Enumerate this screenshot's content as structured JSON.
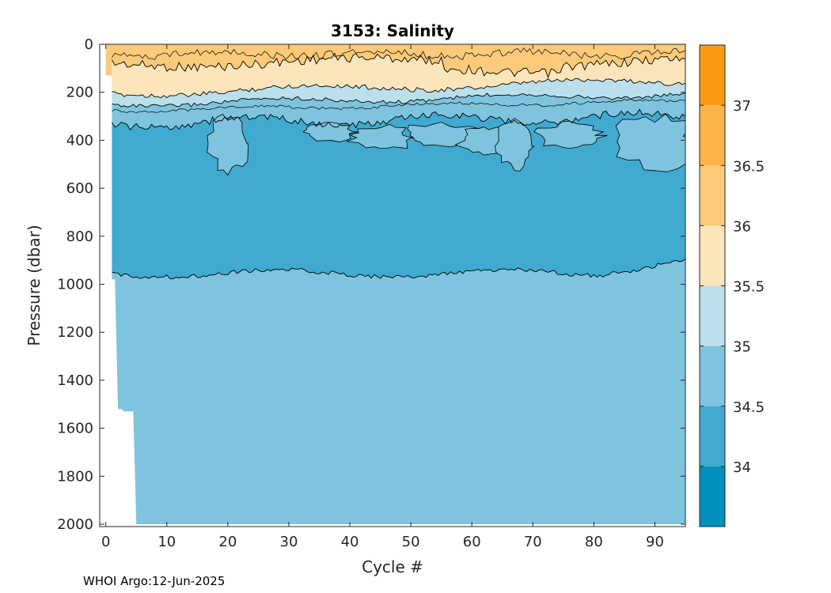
{
  "chart_data": {
    "type": "contour",
    "title": "3153:  Salinity",
    "xlabel": "Cycle #",
    "ylabel": "Pressure (dbar)",
    "xlim": [
      -1,
      95
    ],
    "ylim": [
      2010,
      0
    ],
    "xticks": [
      0,
      10,
      20,
      30,
      40,
      50,
      60,
      70,
      80,
      90
    ],
    "yticks": [
      0,
      200,
      400,
      600,
      800,
      1000,
      1200,
      1400,
      1600,
      1800,
      2000
    ],
    "y_reversed": true,
    "grid": false,
    "colorbar": {
      "location": "right",
      "levels": [
        33.5,
        34,
        34.5,
        35,
        35.5,
        36,
        36.5,
        37,
        37.5
      ],
      "tick_labels": [
        "34",
        "34.5",
        "35",
        "35.5",
        "36",
        "36.5",
        "37"
      ],
      "tick_values": [
        34,
        34.5,
        35,
        35.5,
        36,
        36.5,
        37
      ],
      "colors": [
        "#0090be",
        "#40aad0",
        "#7ec4de",
        "#bbe0ec",
        "#fde5bb",
        "#fbca7a",
        "#fbb448",
        "#fd9a14"
      ]
    },
    "bands": [
      {
        "range": "36-36.5",
        "top_dbar": 0,
        "bottom_dbar_approx": [
          70,
          60,
          80,
          100,
          130,
          100,
          80,
          60
        ]
      },
      {
        "range": "35.5-36",
        "top_dbar": 100,
        "bottom_dbar_approx": [
          230,
          210,
          200,
          180,
          160,
          170,
          190,
          200
        ]
      },
      {
        "range": "35-35.5",
        "top_dbar": 200,
        "bottom_dbar_approx": [
          280,
          270,
          240,
          220,
          210,
          230,
          240,
          260
        ]
      },
      {
        "range": "34.5-35",
        "top_dbar": 250,
        "bottom_dbar_approx": [
          340,
          320,
          300,
          280,
          300,
          320,
          330,
          310
        ]
      },
      {
        "range": "34-34.5",
        "top_dbar": 330,
        "bottom_dbar_approx": [
          960,
          940,
          950,
          970,
          960,
          920,
          900,
          880
        ]
      },
      {
        "range": "34.5-35",
        "top_dbar": 900,
        "bottom_dbar_approx": [
          2000
        ]
      }
    ],
    "data_coverage": {
      "first_cycle": 1,
      "max_depth_by_cycle": [
        {
          "cycle": 0,
          "max_dbar": 130
        },
        {
          "cycle": 1,
          "max_dbar": 980
        },
        {
          "cycle": 2,
          "max_dbar": 1520
        },
        {
          "cycle": 3,
          "max_dbar": 1530
        },
        {
          "cycle": 5,
          "max_dbar": 2000
        },
        {
          "cycle": 95,
          "max_dbar": 2000
        }
      ]
    },
    "footer": "WHOI Argo:12-Jun-2025"
  }
}
